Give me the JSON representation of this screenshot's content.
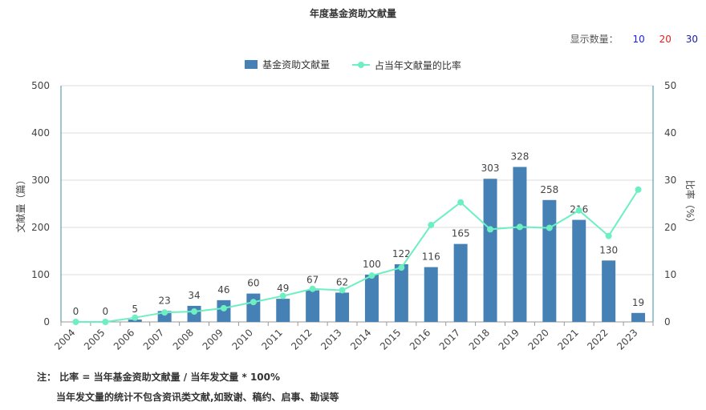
{
  "title": "年度基金资助文献量",
  "display_count": {
    "label": "显示数量：",
    "options": [
      {
        "text": "10",
        "color": "#1a1aff"
      },
      {
        "text": "20",
        "color": "#e02020"
      },
      {
        "text": "30",
        "color": "#1a1aaa"
      }
    ]
  },
  "legend": {
    "bar_label": "基金资助文献量",
    "line_label": "占当年文献量的比率"
  },
  "colors": {
    "bar": "#4681b5",
    "line": "#6cf0c2",
    "axis_right": "#3a8fa0",
    "grid": "#dddddd"
  },
  "chart_data": {
    "type": "bar",
    "categories": [
      "2004",
      "2005",
      "2006",
      "2007",
      "2008",
      "2009",
      "2010",
      "2011",
      "2012",
      "2013",
      "2014",
      "2015",
      "2016",
      "2017",
      "2018",
      "2019",
      "2020",
      "2021",
      "2022",
      "2023"
    ],
    "series": [
      {
        "name": "基金资助文献量",
        "type": "bar",
        "axis": "left",
        "values": [
          0,
          0,
          5,
          23,
          34,
          46,
          60,
          49,
          67,
          62,
          100,
          122,
          116,
          165,
          303,
          328,
          258,
          216,
          130,
          19
        ]
      },
      {
        "name": "占当年文献量的比率",
        "type": "line",
        "axis": "right",
        "values": [
          0,
          0,
          0.9,
          2.0,
          2.2,
          2.9,
          4.2,
          5.5,
          7.0,
          6.7,
          9.8,
          11.5,
          20.5,
          25.3,
          19.6,
          20.1,
          19.9,
          23.6,
          18.2,
          28.0
        ]
      }
    ],
    "ylabel": "文献量（篇）",
    "ylabel_right": "比率（%）",
    "ylim": [
      0,
      500
    ],
    "ylim_right": [
      0,
      50
    ],
    "yticks": [
      "0",
      "100",
      "200",
      "300",
      "400",
      "500"
    ],
    "yticks_right": [
      "0",
      "10",
      "20",
      "30",
      "40",
      "50"
    ],
    "grid": true,
    "legend_position": "top-center"
  },
  "notes": {
    "line1": "注：  比率 = 当年基金资助文献量 / 当年发文量 * 100%",
    "line2": "当年发文量的统计不包含资讯类文献,如致谢、稿约、启事、勘误等"
  }
}
